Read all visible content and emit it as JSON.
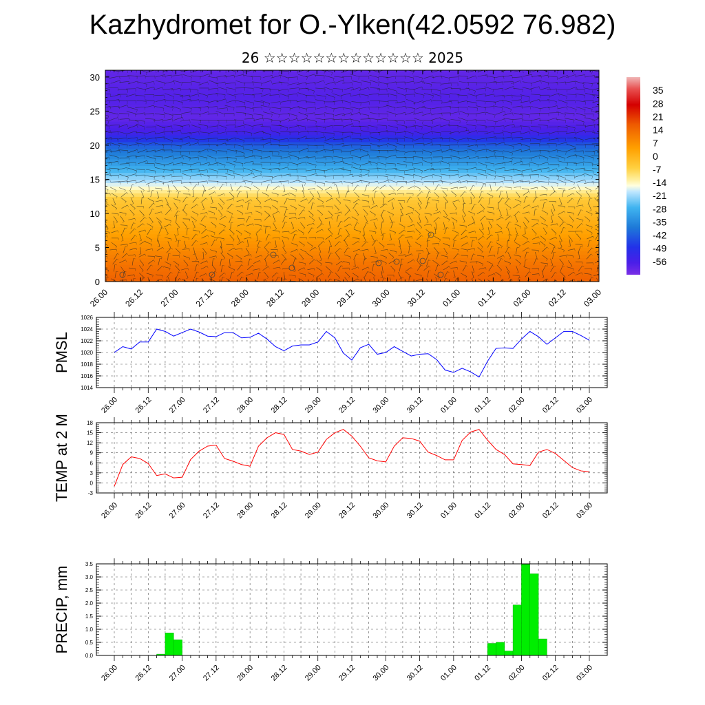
{
  "title": "Kazhydromet for O.-Ylken(42.0592 76.982)",
  "subtitle": "26 ☆☆☆☆☆☆☆☆☆☆☆☆☆ 2025",
  "colors": {
    "pmsl": "#0000ff",
    "temp": "#ff0000",
    "precip": "#00ee00"
  },
  "time_ticks": [
    "26.00",
    "26.12",
    "27.00",
    "27.12",
    "28.00",
    "28.12",
    "29.00",
    "29.12",
    "30.00",
    "30.12",
    "01.00",
    "01.12",
    "02.00",
    "02.12",
    "03.00"
  ],
  "chart_data": [
    {
      "type": "heatmap",
      "name": "temperature-wind-cross-section",
      "x_ticks": [
        "26.00",
        "26.12",
        "27.00",
        "27.12",
        "28.00",
        "28.12",
        "29.00",
        "29.12",
        "30.00",
        "30.12",
        "01.00",
        "01.12",
        "02.00",
        "02.12",
        "03.00"
      ],
      "y_ticks": [
        "0",
        "5",
        "10",
        "15",
        "20",
        "25",
        "30"
      ],
      "ylim": [
        0,
        31
      ],
      "colorbar_labels": [
        "35",
        "28",
        "21",
        "14",
        "7",
        "0",
        "-7",
        "-14",
        "-21",
        "-28",
        "-35",
        "-42",
        "-49",
        "-56"
      ],
      "colorbar_range": [
        -63,
        42
      ],
      "bands": [
        {
          "z": 0,
          "value": 16
        },
        {
          "z": 3,
          "value": 12
        },
        {
          "z": 8,
          "value": 3
        },
        {
          "z": 12,
          "value": -4
        },
        {
          "z": 14.5,
          "value": -18
        },
        {
          "z": 17,
          "value": -30
        },
        {
          "z": 20,
          "value": -42
        },
        {
          "z": 22,
          "value": -56
        },
        {
          "z": 24,
          "value": -60
        },
        {
          "z": 27,
          "value": -58
        },
        {
          "z": 31,
          "value": -60
        }
      ]
    },
    {
      "type": "line",
      "ylabel": "PMSL",
      "x_ticks": [
        "26.00",
        "26.12",
        "27.00",
        "27.12",
        "28.00",
        "28.12",
        "29.00",
        "29.12",
        "30.00",
        "30.12",
        "01.00",
        "01.12",
        "02.00",
        "02.12",
        "03.00"
      ],
      "y_ticks": [
        "1014",
        "1016",
        "1018",
        "1020",
        "1022",
        "1024",
        "1026"
      ],
      "ylim": [
        1014,
        1026
      ],
      "values": [
        1020.0,
        1021.0,
        1020.6,
        1021.8,
        1021.8,
        1024.0,
        1023.6,
        1022.8,
        1023.4,
        1024.0,
        1023.5,
        1022.8,
        1022.7,
        1023.4,
        1023.4,
        1022.5,
        1022.6,
        1023.3,
        1022.3,
        1021.0,
        1020.3,
        1021.1,
        1021.3,
        1021.3,
        1021.8,
        1023.6,
        1022.5,
        1019.9,
        1018.7,
        1020.8,
        1021.4,
        1019.7,
        1020.0,
        1021.0,
        1020.2,
        1019.4,
        1019.7,
        1019.8,
        1018.8,
        1017.0,
        1016.6,
        1017.3,
        1016.7,
        1015.8,
        1018.5,
        1020.7,
        1020.8,
        1020.7,
        1022.3,
        1023.6,
        1022.7,
        1021.4,
        1022.5,
        1023.6,
        1023.6,
        1022.9,
        1022.1
      ],
      "x_start_hours": 0,
      "step_hours": 3
    },
    {
      "type": "line",
      "ylabel": "TEMP at 2 M",
      "x_ticks": [
        "26.00",
        "26.12",
        "27.00",
        "27.12",
        "28.00",
        "28.12",
        "29.00",
        "29.12",
        "30.00",
        "30.12",
        "01.00",
        "01.12",
        "02.00",
        "02.12",
        "03.00"
      ],
      "y_ticks": [
        "-3",
        "0",
        "3",
        "6",
        "9",
        "12",
        "15",
        "18"
      ],
      "ylim": [
        -3,
        18
      ],
      "values": [
        -1.0,
        5.5,
        7.8,
        7.3,
        5.8,
        2.2,
        2.7,
        1.5,
        1.7,
        7.0,
        9.5,
        11.0,
        11.3,
        7.3,
        6.5,
        5.5,
        5.0,
        11.0,
        13.5,
        15.0,
        14.5,
        10.0,
        9.5,
        8.5,
        9.2,
        13.0,
        15.0,
        16.0,
        14.0,
        11.0,
        7.5,
        6.6,
        6.3,
        11.0,
        13.5,
        13.3,
        12.5,
        9.2,
        8.2,
        6.9,
        6.9,
        12.7,
        15.2,
        16.0,
        12.8,
        10.0,
        8.5,
        5.7,
        5.5,
        5.2,
        9.2,
        10.0,
        8.8,
        6.7,
        4.6,
        3.6,
        3.3
      ],
      "x_start_hours": 0,
      "step_hours": 3
    },
    {
      "type": "bar",
      "ylabel": "PRECIP, mm",
      "x_ticks": [
        "26.00",
        "26.12",
        "27.00",
        "27.12",
        "28.00",
        "28.12",
        "29.00",
        "29.12",
        "30.00",
        "30.12",
        "01.00",
        "01.12",
        "02.00",
        "02.12",
        "03.00"
      ],
      "y_ticks": [
        "0.0",
        "0.5",
        "1.0",
        "1.5",
        "2.0",
        "2.5",
        "3.0",
        "3.5"
      ],
      "ylim": [
        0,
        3.5
      ],
      "bars": [
        {
          "start_hour": 15,
          "value": 0.05
        },
        {
          "start_hour": 18,
          "value": 0.86
        },
        {
          "start_hour": 21,
          "value": 0.6
        },
        {
          "start_hour": 132,
          "value": 0.46
        },
        {
          "start_hour": 135,
          "value": 0.5
        },
        {
          "start_hour": 138,
          "value": 0.17
        },
        {
          "start_hour": 141,
          "value": 1.93
        },
        {
          "start_hour": 144,
          "value": 3.48
        },
        {
          "start_hour": 147,
          "value": 3.12
        },
        {
          "start_hour": 150,
          "value": 0.63
        }
      ]
    }
  ]
}
